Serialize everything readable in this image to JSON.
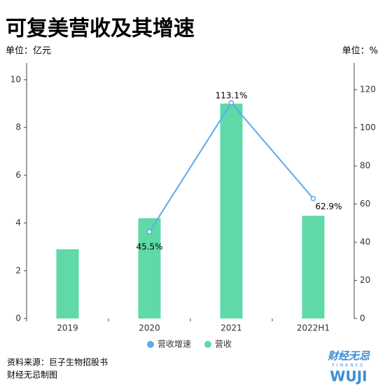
{
  "chart_data": {
    "type": "bar",
    "title": "可复美营收及其增速",
    "y_label": "单位：亿元",
    "y2_label": "单位：%",
    "categories": [
      "2019",
      "2020",
      "2021",
      "2022H1"
    ],
    "series": [
      {
        "name": "营收增速",
        "type": "line",
        "axis": "y2",
        "color": "#5aabf0",
        "values": [
          null,
          45.5,
          113.1,
          62.9
        ],
        "value_labels": [
          null,
          "45.5%",
          "113.1%",
          "62.9%"
        ]
      },
      {
        "name": "营收",
        "type": "bar",
        "color": "#5fd9a8",
        "values": [
          2.9,
          4.2,
          9.0,
          4.3
        ]
      }
    ],
    "ylim": [
      0,
      10.7
    ],
    "yticks": [
      0,
      2,
      4,
      6,
      8,
      10
    ],
    "y2lim": [
      0,
      134
    ],
    "y2ticks": [
      0,
      20,
      40,
      60,
      80,
      100,
      120
    ],
    "source": "资料来源：巨子生物招股书",
    "credit": "财经无忌制图",
    "logo": {
      "name": "财经无忌",
      "sub": "FINANCE",
      "mark": "WUJI"
    }
  }
}
